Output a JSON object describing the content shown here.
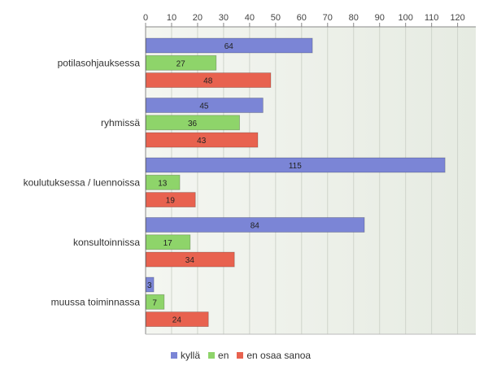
{
  "chart_data": {
    "type": "bar",
    "orientation": "horizontal",
    "categories": [
      "potilasohjauksessa",
      "ryhmissä",
      "koulutuksessa / luennoissa",
      "konsultoinnissa",
      "muussa toiminnassa"
    ],
    "series": [
      {
        "name": "kyllä",
        "values": [
          64,
          45,
          115,
          84,
          3
        ],
        "color": "#7b85d6"
      },
      {
        "name": "en",
        "values": [
          27,
          36,
          13,
          17,
          7
        ],
        "color": "#8ed46a"
      },
      {
        "name": "en osaa sanoa",
        "values": [
          48,
          43,
          19,
          34,
          24
        ],
        "color": "#e8624f"
      }
    ],
    "xlim": [
      0,
      127
    ],
    "x_ticks": [
      0,
      10,
      20,
      30,
      40,
      50,
      60,
      70,
      80,
      90,
      100,
      110,
      120
    ],
    "x_axis_position": "top",
    "grid": true,
    "legend_position": "bottom",
    "data_labels": true
  }
}
